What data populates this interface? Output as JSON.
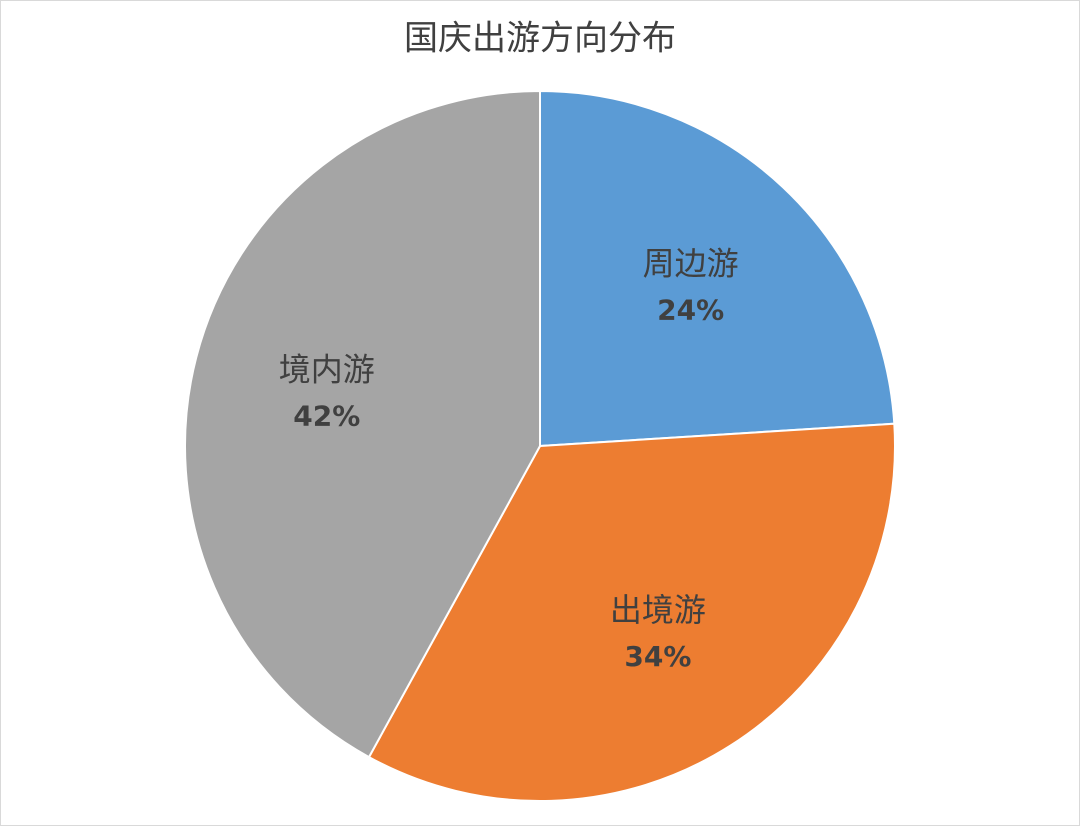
{
  "chart_data": {
    "type": "pie",
    "title": "国庆出游方向分布",
    "categories": [
      "周边游",
      "出境游",
      "境内游"
    ],
    "values": [
      24,
      34,
      42
    ],
    "value_labels": [
      "24%",
      "34%",
      "42%"
    ],
    "colors": [
      "#5b9bd5",
      "#ed7d31",
      "#a5a5a5"
    ]
  }
}
